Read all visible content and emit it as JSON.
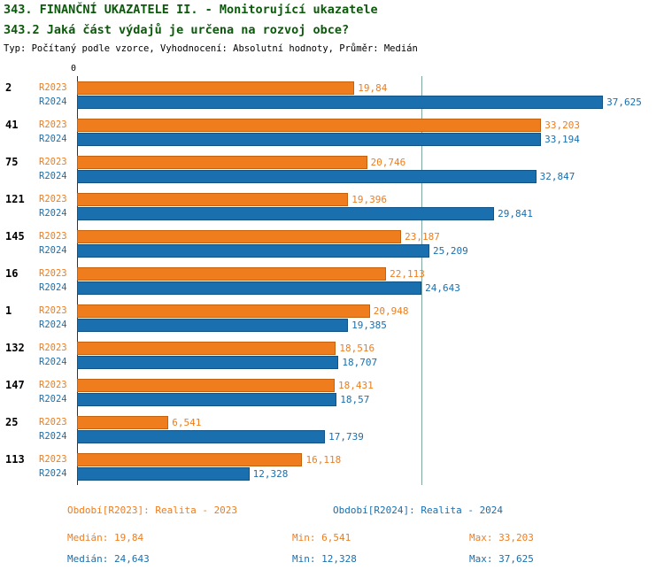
{
  "header": {
    "title_line1": "343. FINANČNÍ UKAZATELE II. - Monitorující ukazatele",
    "title_line2": "343.2 Jaká část výdajů je určena na rozvoj obce?",
    "subtitle": "Typ: Počítaný podle vzorce, Vyhodnocení: Absolutní hodnoty, Průměr: Medián"
  },
  "chart_data": {
    "type": "bar",
    "orientation": "horizontal",
    "axis": {
      "origin_label": "0",
      "xmax": 38
    },
    "series_labels": [
      "R2023",
      "R2024"
    ],
    "colors": {
      "r2023": "#ef7d1e",
      "r2024": "#1a6fae",
      "median_line": "#7fa7a0"
    },
    "median_line_value": 24.643,
    "groups": [
      {
        "id": "2",
        "r2023": 19.84,
        "r2023_label": "19,84",
        "r2024": 37.625,
        "r2024_label": "37,625"
      },
      {
        "id": "41",
        "r2023": 33.203,
        "r2023_label": "33,203",
        "r2024": 33.194,
        "r2024_label": "33,194"
      },
      {
        "id": "75",
        "r2023": 20.746,
        "r2023_label": "20,746",
        "r2024": 32.847,
        "r2024_label": "32,847"
      },
      {
        "id": "121",
        "r2023": 19.396,
        "r2023_label": "19,396",
        "r2024": 29.841,
        "r2024_label": "29,841"
      },
      {
        "id": "145",
        "r2023": 23.187,
        "r2023_label": "23,187",
        "r2024": 25.209,
        "r2024_label": "25,209"
      },
      {
        "id": "16",
        "r2023": 22.113,
        "r2023_label": "22,113",
        "r2024": 24.643,
        "r2024_label": "24,643"
      },
      {
        "id": "1",
        "r2023": 20.948,
        "r2023_label": "20,948",
        "r2024": 19.385,
        "r2024_label": "19,385"
      },
      {
        "id": "132",
        "r2023": 18.516,
        "r2023_label": "18,516",
        "r2024": 18.707,
        "r2024_label": "18,707"
      },
      {
        "id": "147",
        "r2023": 18.431,
        "r2023_label": "18,431",
        "r2024": 18.57,
        "r2024_label": "18,57"
      },
      {
        "id": "25",
        "r2023": 6.541,
        "r2023_label": "6,541",
        "r2024": 17.739,
        "r2024_label": "17,739"
      },
      {
        "id": "113",
        "r2023": 16.118,
        "r2023_label": "16,118",
        "r2024": 12.328,
        "r2024_label": "12,328"
      }
    ]
  },
  "footer": {
    "legend_r2023": "Období[R2023]: Realita - 2023",
    "legend_r2024": "Období[R2024]: Realita - 2024",
    "stats_r2023": {
      "median": "Medián: 19,84",
      "min": "Min: 6,541",
      "max": "Max: 33,203"
    },
    "stats_r2024": {
      "median": "Medián: 24,643",
      "min": "Min: 12,328",
      "max": "Max: 37,625"
    }
  }
}
